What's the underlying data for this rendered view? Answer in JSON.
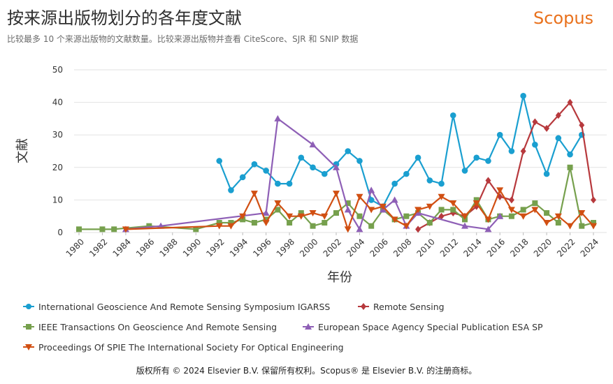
{
  "header": {
    "title": "按来源出版物划分的各年度文献",
    "brand": "Scopus",
    "subtitle": "比较最多 10 个来源出版物的文献数量。比较来源出版物并查看 CiteScore、SJR 和 SNIP 数据"
  },
  "footer": {
    "text": "版权所有 © 2024 Elsevier B.V. 保留所有权利。Scopus® 是 Elsevier B.V. 的注册商标。"
  },
  "chart_data": {
    "type": "line",
    "xlabel": "年份",
    "ylabel": "文献",
    "xlim": [
      1980,
      2024
    ],
    "ylim": [
      0,
      50
    ],
    "yticks": [
      0,
      10,
      20,
      30,
      40,
      50
    ],
    "xticks": [
      "1980",
      "1982",
      "1984",
      "1986",
      "1988",
      "1990",
      "1992",
      "1994",
      "1996",
      "1998",
      "2000",
      "2002",
      "2004",
      "2006",
      "2008",
      "2010",
      "2012",
      "2014",
      "2016",
      "2018",
      "2020",
      "2022",
      "2024"
    ],
    "grid": true,
    "legend_position": "bottom",
    "series": [
      {
        "name": "International Geoscience And Remote Sensing Symposium IGARSS",
        "color": "#1a9fd0",
        "marker": "circle",
        "points": [
          [
            1992,
            22
          ],
          [
            1993,
            13
          ],
          [
            1994,
            17
          ],
          [
            1995,
            21
          ],
          [
            1996,
            19
          ],
          [
            1997,
            15
          ],
          [
            1998,
            15
          ],
          [
            1999,
            23
          ],
          [
            2000,
            20
          ],
          [
            2001,
            18
          ],
          [
            2002,
            21
          ],
          [
            2003,
            25
          ],
          [
            2004,
            22
          ],
          [
            2005,
            10
          ],
          [
            2006,
            8
          ],
          [
            2007,
            15
          ],
          [
            2008,
            18
          ],
          [
            2009,
            23
          ],
          [
            2010,
            16
          ],
          [
            2011,
            15
          ],
          [
            2012,
            36
          ],
          [
            2013,
            19
          ],
          [
            2014,
            23
          ],
          [
            2015,
            22
          ],
          [
            2016,
            30
          ],
          [
            2017,
            25
          ],
          [
            2018,
            42
          ],
          [
            2019,
            27
          ],
          [
            2020,
            18
          ],
          [
            2021,
            29
          ],
          [
            2022,
            24
          ],
          [
            2023,
            30
          ]
        ]
      },
      {
        "name": "Remote Sensing",
        "color": "#b7393d",
        "marker": "diamond",
        "points": [
          [
            2009,
            1
          ],
          [
            2010,
            3
          ],
          [
            2011,
            5
          ],
          [
            2012,
            6
          ],
          [
            2013,
            5
          ],
          [
            2014,
            8
          ],
          [
            2015,
            16
          ],
          [
            2016,
            11
          ],
          [
            2017,
            10
          ],
          [
            2018,
            25
          ],
          [
            2019,
            34
          ],
          [
            2020,
            32
          ],
          [
            2021,
            36
          ],
          [
            2022,
            40
          ],
          [
            2023,
            33
          ],
          [
            2024,
            10
          ]
        ]
      },
      {
        "name": "IEEE Transactions On Geoscience And Remote Sensing",
        "color": "#76a04d",
        "marker": "square",
        "points": [
          [
            1980,
            1
          ],
          [
            1982,
            1
          ],
          [
            1983,
            1
          ],
          [
            1986,
            2
          ],
          [
            1990,
            1
          ],
          [
            1992,
            3
          ],
          [
            1993,
            3
          ],
          [
            1994,
            4
          ],
          [
            1995,
            3
          ],
          [
            1996,
            4
          ],
          [
            1997,
            7
          ],
          [
            1998,
            3
          ],
          [
            1999,
            6
          ],
          [
            2000,
            2
          ],
          [
            2001,
            3
          ],
          [
            2002,
            6
          ],
          [
            2003,
            9
          ],
          [
            2004,
            5
          ],
          [
            2005,
            2
          ],
          [
            2006,
            7
          ],
          [
            2007,
            4
          ],
          [
            2008,
            5
          ],
          [
            2009,
            6
          ],
          [
            2010,
            3
          ],
          [
            2011,
            7
          ],
          [
            2012,
            7
          ],
          [
            2013,
            4
          ],
          [
            2014,
            10
          ],
          [
            2015,
            4
          ],
          [
            2016,
            5
          ],
          [
            2017,
            5
          ],
          [
            2018,
            7
          ],
          [
            2019,
            9
          ],
          [
            2020,
            6
          ],
          [
            2021,
            3
          ],
          [
            2022,
            20
          ],
          [
            2023,
            2
          ],
          [
            2024,
            3
          ]
        ]
      },
      {
        "name": "European Space Agency Special Publication ESA SP",
        "color": "#8e5fb6",
        "marker": "triangle-up",
        "points": [
          [
            1984,
            1
          ],
          [
            1987,
            2
          ],
          [
            1996,
            6
          ],
          [
            1997,
            35
          ],
          [
            2000,
            27
          ],
          [
            2002,
            20
          ],
          [
            2003,
            7
          ],
          [
            2004,
            1
          ],
          [
            2005,
            13
          ],
          [
            2006,
            7
          ],
          [
            2007,
            10
          ],
          [
            2008,
            2
          ],
          [
            2009,
            6
          ],
          [
            2013,
            2
          ],
          [
            2015,
            1
          ],
          [
            2016,
            5
          ]
        ]
      },
      {
        "name": "Proceedings Of SPIE The International Society For Optical Engineering",
        "color": "#d14f12",
        "marker": "triangle-down",
        "points": [
          [
            1984,
            1
          ],
          [
            1992,
            2
          ],
          [
            1993,
            2
          ],
          [
            1994,
            5
          ],
          [
            1995,
            12
          ],
          [
            1996,
            3
          ],
          [
            1997,
            9
          ],
          [
            1998,
            5
          ],
          [
            1999,
            5
          ],
          [
            2000,
            6
          ],
          [
            2001,
            5
          ],
          [
            2002,
            12
          ],
          [
            2003,
            1
          ],
          [
            2004,
            11
          ],
          [
            2005,
            7
          ],
          [
            2006,
            8
          ],
          [
            2007,
            4
          ],
          [
            2008,
            2
          ],
          [
            2009,
            7
          ],
          [
            2010,
            8
          ],
          [
            2011,
            11
          ],
          [
            2012,
            9
          ],
          [
            2013,
            5
          ],
          [
            2014,
            9
          ],
          [
            2015,
            4
          ],
          [
            2016,
            13
          ],
          [
            2017,
            7
          ],
          [
            2018,
            5
          ],
          [
            2019,
            7
          ],
          [
            2020,
            3
          ],
          [
            2021,
            5
          ],
          [
            2022,
            2
          ],
          [
            2023,
            6
          ],
          [
            2024,
            2
          ]
        ]
      }
    ]
  }
}
